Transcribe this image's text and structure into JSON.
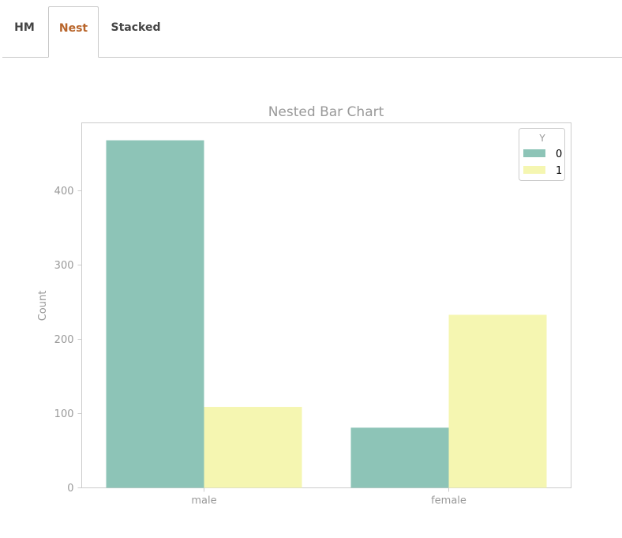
{
  "tabs": [
    {
      "label": "HM",
      "active": false
    },
    {
      "label": "Nest",
      "active": true
    },
    {
      "label": "Stacked",
      "active": false
    }
  ],
  "colors": {
    "tab_active": "#b8652b",
    "series_0": "#8dc4b7",
    "series_1": "#f5f6b1",
    "axis_text": "#999999"
  },
  "chart_data": {
    "type": "bar",
    "title": "Nested Bar Chart",
    "xlabel": "",
    "ylabel": "Count",
    "categories": [
      "male",
      "female"
    ],
    "series": [
      {
        "name": "0",
        "values": [
          468,
          81
        ]
      },
      {
        "name": "1",
        "values": [
          109,
          233
        ]
      }
    ],
    "ylim": [
      0,
      490
    ],
    "yticks": [
      0,
      100,
      200,
      300,
      400
    ],
    "legend_title": "Y",
    "legend_position": "top-right",
    "grid": false
  }
}
